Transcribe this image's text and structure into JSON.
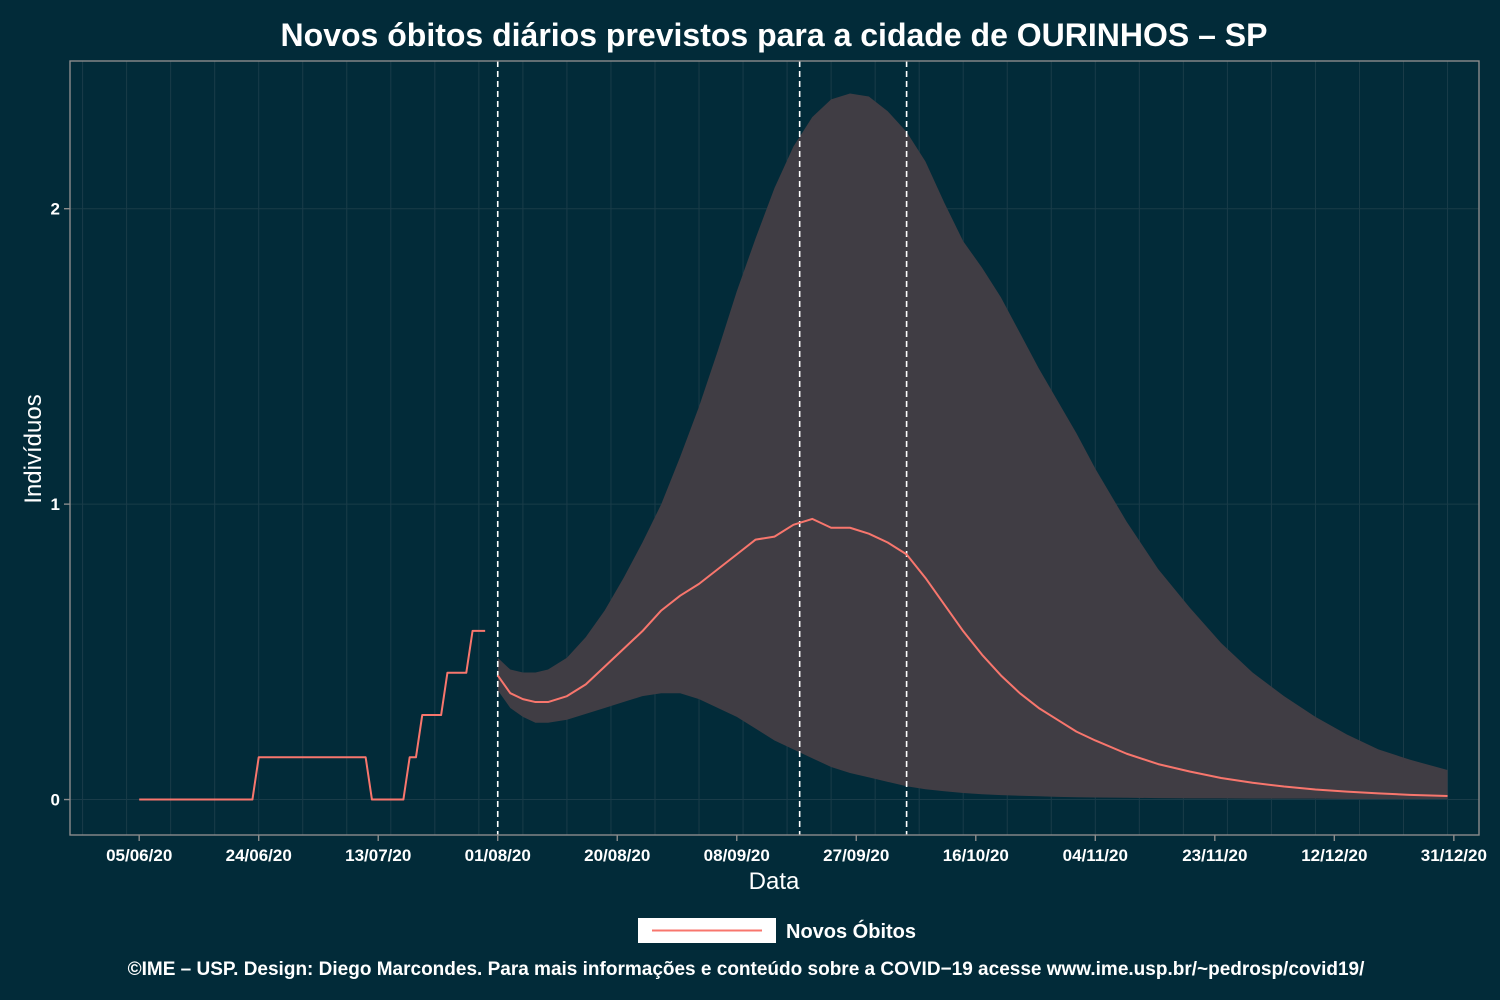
{
  "chart_data": {
    "type": "line",
    "title": "Novos óbitos diários previstos para a cidade de OURINHOS – SP",
    "xlabel": "Data",
    "ylabel": "Indivíduos",
    "date_format": "DD/MM/YY",
    "xlim": [
      "2020-05-25",
      "2021-01-04"
    ],
    "ylim": [
      -0.12,
      2.5
    ],
    "y_ticks": [
      0,
      1,
      2
    ],
    "x_ticks": [
      {
        "date": "2020-06-05",
        "label": "05/06/20"
      },
      {
        "date": "2020-06-24",
        "label": "24/06/20"
      },
      {
        "date": "2020-07-13",
        "label": "13/07/20"
      },
      {
        "date": "2020-08-01",
        "label": "01/08/20"
      },
      {
        "date": "2020-08-20",
        "label": "20/08/20"
      },
      {
        "date": "2020-09-08",
        "label": "08/09/20"
      },
      {
        "date": "2020-09-27",
        "label": "27/09/20"
      },
      {
        "date": "2020-10-16",
        "label": "16/10/20"
      },
      {
        "date": "2020-11-04",
        "label": "04/11/20"
      },
      {
        "date": "2020-11-23",
        "label": "23/11/20"
      },
      {
        "date": "2020-12-12",
        "label": "12/12/20"
      },
      {
        "date": "2020-12-31",
        "label": "31/12/20"
      }
    ],
    "vlines": [
      "2020-08-01",
      "2020-09-18",
      "2020-10-05"
    ],
    "grid": true,
    "legend_position": "bottom",
    "series": [
      {
        "name": "Novos Óbitos",
        "color": "#f8766d",
        "points": [
          [
            "2020-06-05",
            0
          ],
          [
            "2020-06-06",
            0
          ],
          [
            "2020-06-07",
            0
          ],
          [
            "2020-06-08",
            0
          ],
          [
            "2020-06-09",
            0
          ],
          [
            "2020-06-10",
            0
          ],
          [
            "2020-06-11",
            0
          ],
          [
            "2020-06-12",
            0
          ],
          [
            "2020-06-13",
            0
          ],
          [
            "2020-06-14",
            0
          ],
          [
            "2020-06-15",
            0
          ],
          [
            "2020-06-16",
            0
          ],
          [
            "2020-06-17",
            0
          ],
          [
            "2020-06-18",
            0
          ],
          [
            "2020-06-19",
            0
          ],
          [
            "2020-06-20",
            0
          ],
          [
            "2020-06-21",
            0
          ],
          [
            "2020-06-22",
            0
          ],
          [
            "2020-06-23",
            0
          ],
          [
            "2020-06-24",
            0.143
          ],
          [
            "2020-06-25",
            0.143
          ],
          [
            "2020-06-26",
            0.143
          ],
          [
            "2020-06-27",
            0.143
          ],
          [
            "2020-06-28",
            0.143
          ],
          [
            "2020-06-29",
            0.143
          ],
          [
            "2020-06-30",
            0.143
          ],
          [
            "2020-07-01",
            0.143
          ],
          [
            "2020-07-02",
            0.143
          ],
          [
            "2020-07-03",
            0.143
          ],
          [
            "2020-07-04",
            0.143
          ],
          [
            "2020-07-05",
            0.143
          ],
          [
            "2020-07-06",
            0.143
          ],
          [
            "2020-07-07",
            0.143
          ],
          [
            "2020-07-08",
            0.143
          ],
          [
            "2020-07-09",
            0.143
          ],
          [
            "2020-07-10",
            0.143
          ],
          [
            "2020-07-11",
            0.143
          ],
          [
            "2020-07-12",
            0
          ],
          [
            "2020-07-13",
            0
          ],
          [
            "2020-07-14",
            0
          ],
          [
            "2020-07-15",
            0
          ],
          [
            "2020-07-16",
            0
          ],
          [
            "2020-07-17",
            0
          ],
          [
            "2020-07-18",
            0.143
          ],
          [
            "2020-07-19",
            0.143
          ],
          [
            "2020-07-20",
            0.286
          ],
          [
            "2020-07-21",
            0.286
          ],
          [
            "2020-07-22",
            0.286
          ],
          [
            "2020-07-23",
            0.286
          ],
          [
            "2020-07-24",
            0.429
          ],
          [
            "2020-07-25",
            0.429
          ],
          [
            "2020-07-26",
            0.429
          ],
          [
            "2020-07-27",
            0.429
          ],
          [
            "2020-07-28",
            0.571
          ],
          [
            "2020-07-29",
            0.571
          ],
          [
            "2020-07-30",
            0.571
          ]
        ]
      },
      {
        "name": "Novos Óbitos",
        "color": "#f8766d",
        "points": [
          [
            "2020-08-01",
            0.42
          ],
          [
            "2020-08-03",
            0.36
          ],
          [
            "2020-08-05",
            0.34
          ],
          [
            "2020-08-07",
            0.33
          ],
          [
            "2020-08-09",
            0.33
          ],
          [
            "2020-08-12",
            0.35
          ],
          [
            "2020-08-15",
            0.39
          ],
          [
            "2020-08-18",
            0.45
          ],
          [
            "2020-08-21",
            0.51
          ],
          [
            "2020-08-24",
            0.57
          ],
          [
            "2020-08-27",
            0.64
          ],
          [
            "2020-08-30",
            0.69
          ],
          [
            "2020-09-02",
            0.73
          ],
          [
            "2020-09-05",
            0.78
          ],
          [
            "2020-09-08",
            0.83
          ],
          [
            "2020-09-11",
            0.88
          ],
          [
            "2020-09-14",
            0.89
          ],
          [
            "2020-09-17",
            0.93
          ],
          [
            "2020-09-20",
            0.95
          ],
          [
            "2020-09-23",
            0.92
          ],
          [
            "2020-09-26",
            0.92
          ],
          [
            "2020-09-29",
            0.9
          ],
          [
            "2020-10-02",
            0.87
          ],
          [
            "2020-10-05",
            0.83
          ],
          [
            "2020-10-08",
            0.75
          ],
          [
            "2020-10-11",
            0.66
          ],
          [
            "2020-10-14",
            0.57
          ],
          [
            "2020-10-17",
            0.49
          ],
          [
            "2020-10-20",
            0.42
          ],
          [
            "2020-10-23",
            0.36
          ],
          [
            "2020-10-26",
            0.31
          ],
          [
            "2020-10-29",
            0.27
          ],
          [
            "2020-11-01",
            0.23
          ],
          [
            "2020-11-04",
            0.2
          ],
          [
            "2020-11-09",
            0.155
          ],
          [
            "2020-11-14",
            0.12
          ],
          [
            "2020-11-19",
            0.095
          ],
          [
            "2020-11-24",
            0.073
          ],
          [
            "2020-11-29",
            0.057
          ],
          [
            "2020-12-04",
            0.044
          ],
          [
            "2020-12-09",
            0.034
          ],
          [
            "2020-12-14",
            0.027
          ],
          [
            "2020-12-19",
            0.021
          ],
          [
            "2020-12-24",
            0.016
          ],
          [
            "2020-12-30",
            0.012
          ]
        ]
      }
    ],
    "confidence_band": {
      "color": "#403d44",
      "points": [
        [
          "2020-08-01",
          0.37,
          0.48
        ],
        [
          "2020-08-03",
          0.31,
          0.44
        ],
        [
          "2020-08-05",
          0.28,
          0.43
        ],
        [
          "2020-08-07",
          0.26,
          0.43
        ],
        [
          "2020-08-09",
          0.26,
          0.44
        ],
        [
          "2020-08-12",
          0.27,
          0.48
        ],
        [
          "2020-08-15",
          0.29,
          0.55
        ],
        [
          "2020-08-18",
          0.31,
          0.64
        ],
        [
          "2020-08-21",
          0.33,
          0.75
        ],
        [
          "2020-08-24",
          0.35,
          0.87
        ],
        [
          "2020-08-27",
          0.36,
          1.0
        ],
        [
          "2020-08-30",
          0.36,
          1.16
        ],
        [
          "2020-09-02",
          0.34,
          1.33
        ],
        [
          "2020-09-05",
          0.31,
          1.52
        ],
        [
          "2020-09-08",
          0.28,
          1.72
        ],
        [
          "2020-09-11",
          0.24,
          1.9
        ],
        [
          "2020-09-14",
          0.2,
          2.07
        ],
        [
          "2020-09-17",
          0.17,
          2.21
        ],
        [
          "2020-09-20",
          0.14,
          2.31
        ],
        [
          "2020-09-23",
          0.11,
          2.37
        ],
        [
          "2020-09-26",
          0.09,
          2.39
        ],
        [
          "2020-09-29",
          0.075,
          2.38
        ],
        [
          "2020-10-02",
          0.06,
          2.33
        ],
        [
          "2020-10-05",
          0.045,
          2.26
        ],
        [
          "2020-10-08",
          0.035,
          2.16
        ],
        [
          "2020-10-11",
          0.028,
          2.02
        ],
        [
          "2020-10-14",
          0.022,
          1.89
        ],
        [
          "2020-10-17",
          0.018,
          1.8
        ],
        [
          "2020-10-20",
          0.015,
          1.7
        ],
        [
          "2020-10-23",
          0.013,
          1.58
        ],
        [
          "2020-10-26",
          0.011,
          1.46
        ],
        [
          "2020-10-29",
          0.009,
          1.35
        ],
        [
          "2020-11-01",
          0.008,
          1.24
        ],
        [
          "2020-11-04",
          0.007,
          1.12
        ],
        [
          "2020-11-09",
          0.006,
          0.94
        ],
        [
          "2020-11-14",
          0.005,
          0.78
        ],
        [
          "2020-11-19",
          0.004,
          0.65
        ],
        [
          "2020-11-24",
          0.004,
          0.53
        ],
        [
          "2020-11-29",
          0.003,
          0.43
        ],
        [
          "2020-12-04",
          0.003,
          0.35
        ],
        [
          "2020-12-09",
          0.003,
          0.28
        ],
        [
          "2020-12-14",
          0.002,
          0.22
        ],
        [
          "2020-12-19",
          0.002,
          0.17
        ],
        [
          "2020-12-24",
          0.002,
          0.135
        ],
        [
          "2020-12-30",
          0.002,
          0.1
        ]
      ]
    },
    "legend": [
      {
        "label": "Novos Óbitos",
        "color": "#f8766d"
      }
    ],
    "caption": "©IME – USP. Design: Diego Marcondes. Para mais informações e conteúdo sobre a COVID−19 acesse www.ime.usp.br/~pedrosp/covid19/"
  },
  "colors": {
    "background": "#022b39",
    "band": "#403d44",
    "line": "#f8766d",
    "grid": "#1a3c49",
    "frame": "#8c8c8c",
    "text": "#ffffff"
  }
}
